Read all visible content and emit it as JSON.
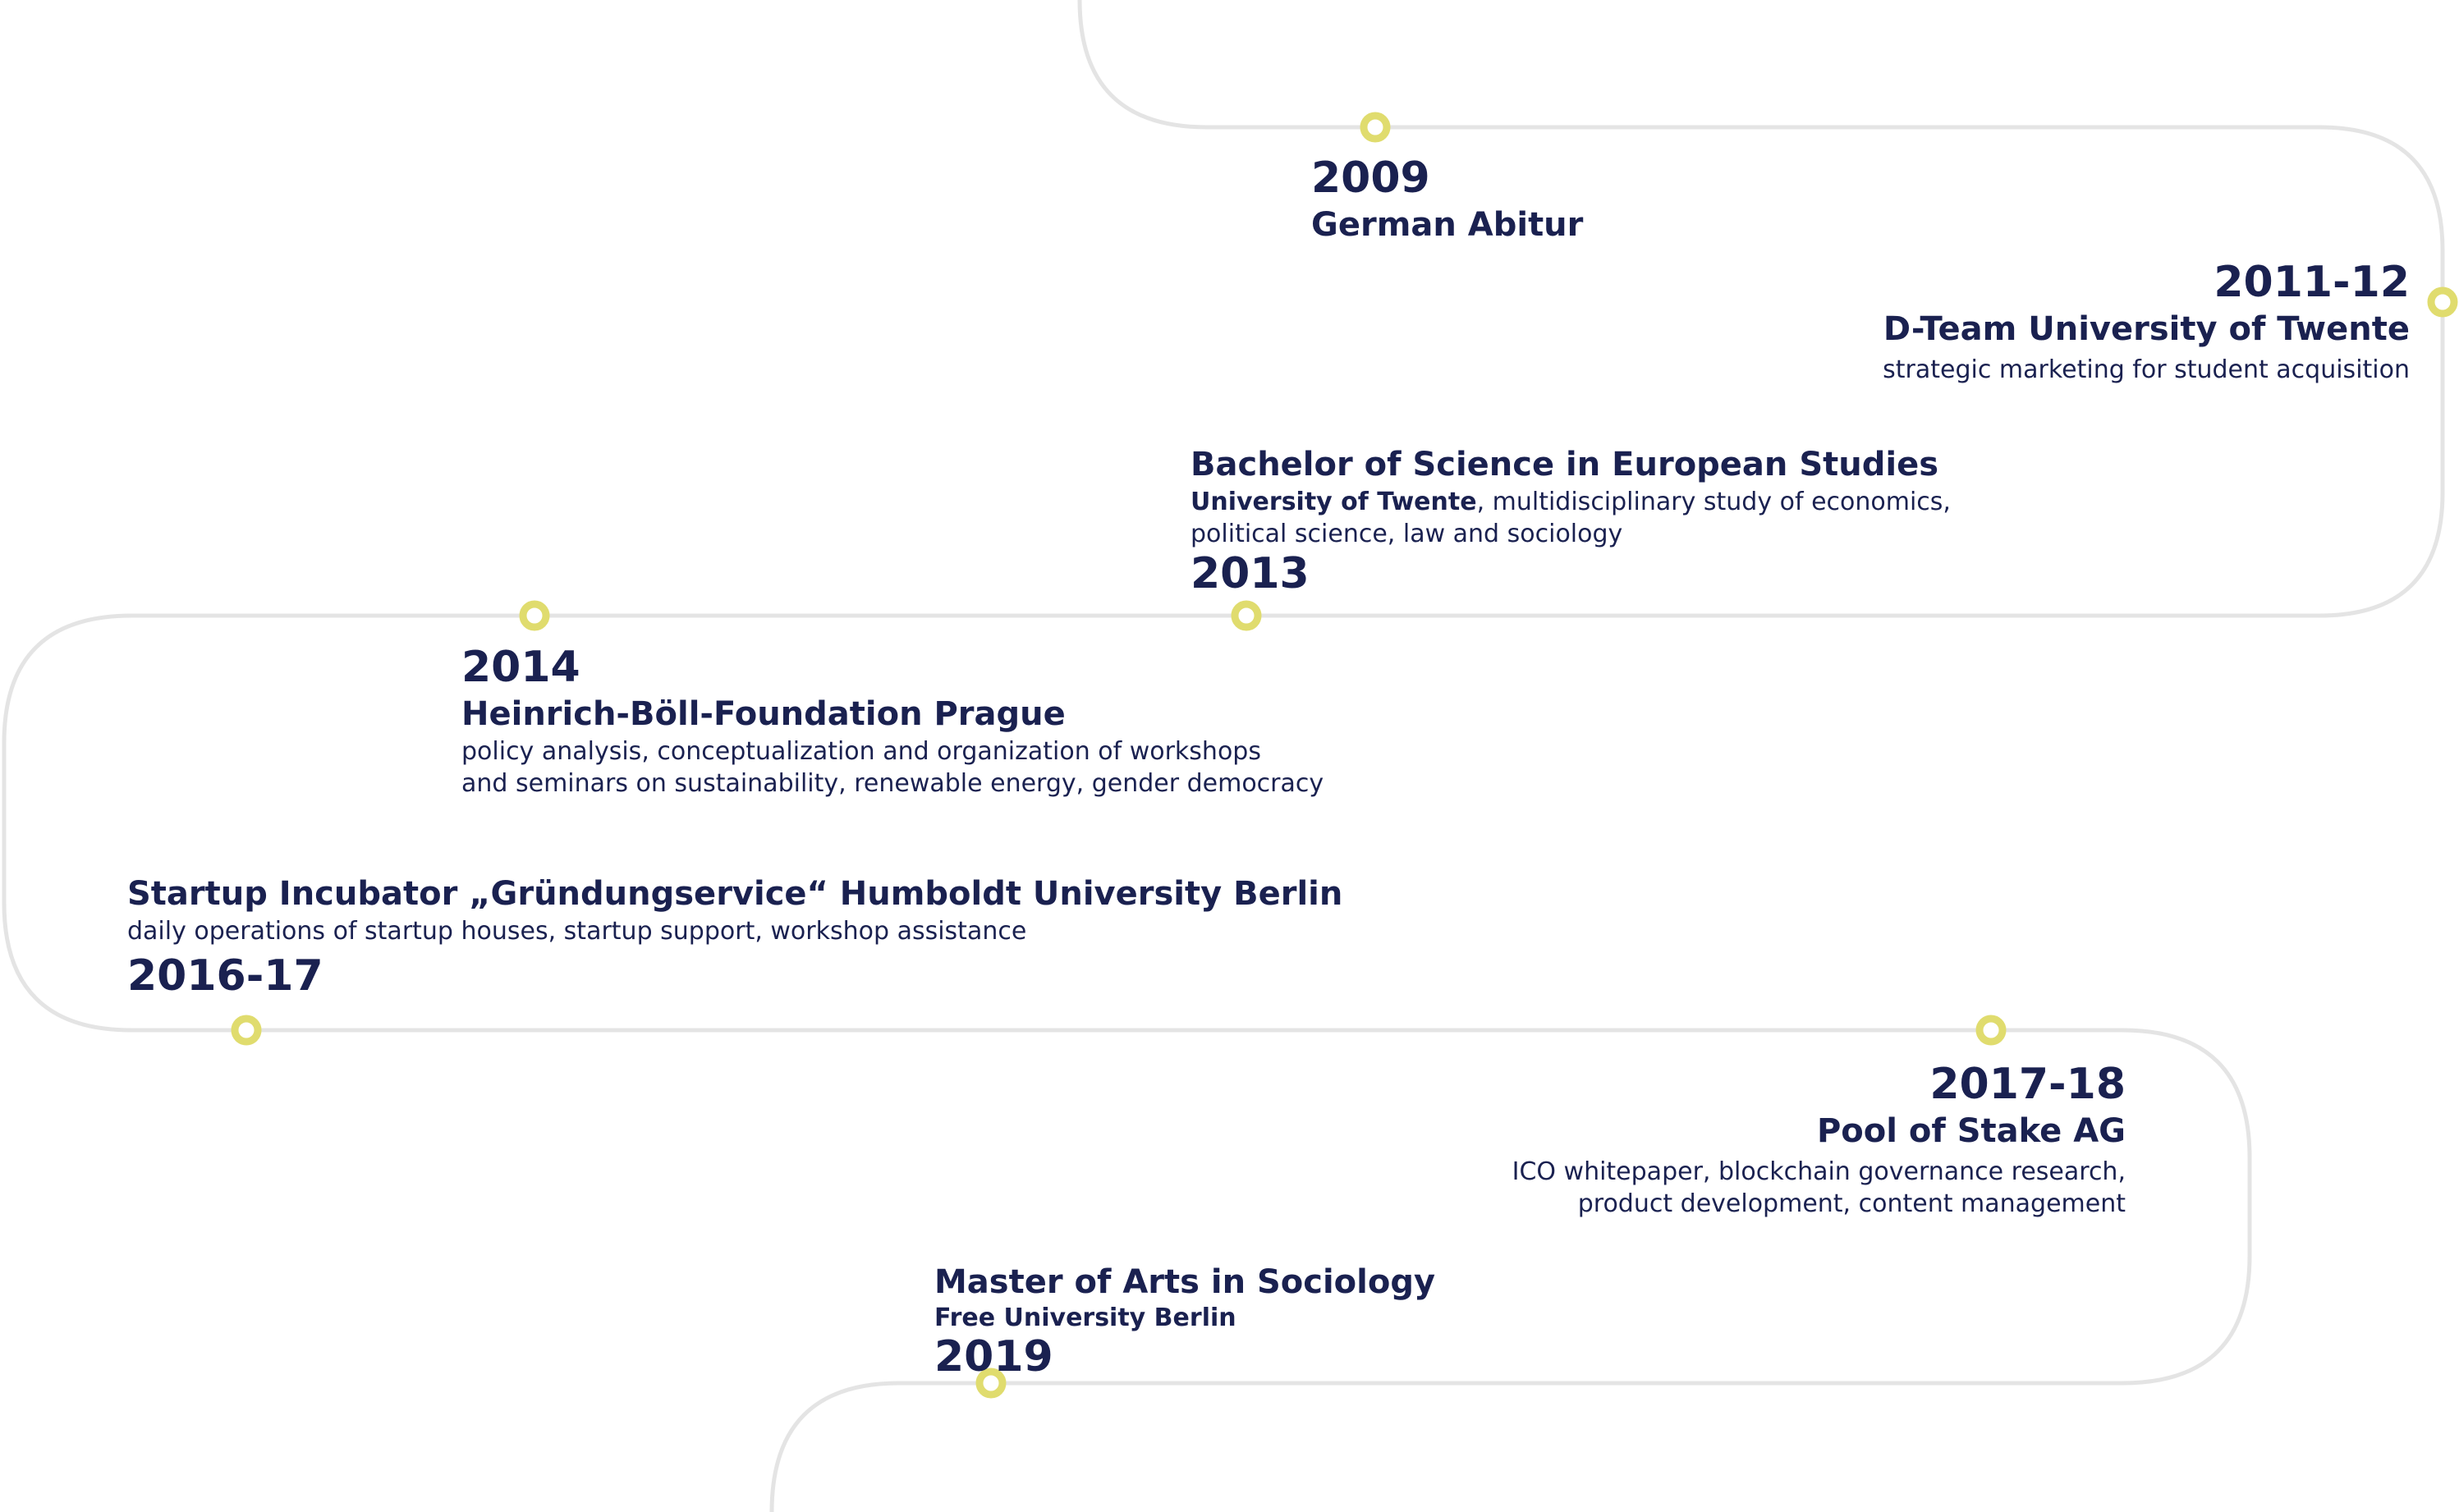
{
  "colors": {
    "text": "#1a2150",
    "line": "#e4e4e4",
    "marker": "#e0dc6e"
  },
  "timeline": [
    {
      "year": "2009",
      "title": "German Abitur"
    },
    {
      "year": "2011-12",
      "title": "D-Team University of Twente",
      "desc": "strategic marketing for student acquisition"
    },
    {
      "year": "2013",
      "title": "Bachelor of Science in European Studies",
      "desc_bold": "University of Twente",
      "desc": ", multidisciplinary study of economics,",
      "desc2": "political science, law and sociology"
    },
    {
      "year": "2014",
      "title": "Heinrich-Böll-Foundation Prague",
      "desc": "policy analysis, conceptualization and organization of workshops",
      "desc2": "and seminars on sustainability, renewable energy, gender democracy"
    },
    {
      "year": "2016-17",
      "title": "Startup Incubator „Gründungservice“ Humboldt University Berlin",
      "desc": "daily operations of startup houses, startup support, workshop assistance"
    },
    {
      "year": "2017-18",
      "title": "Pool of Stake AG",
      "desc": "ICO whitepaper, blockchain governance research,",
      "desc2": "product development, content management"
    },
    {
      "year": "2019",
      "title": "Master of Arts in Sociology",
      "subtitle": "Free University Berlin"
    }
  ]
}
